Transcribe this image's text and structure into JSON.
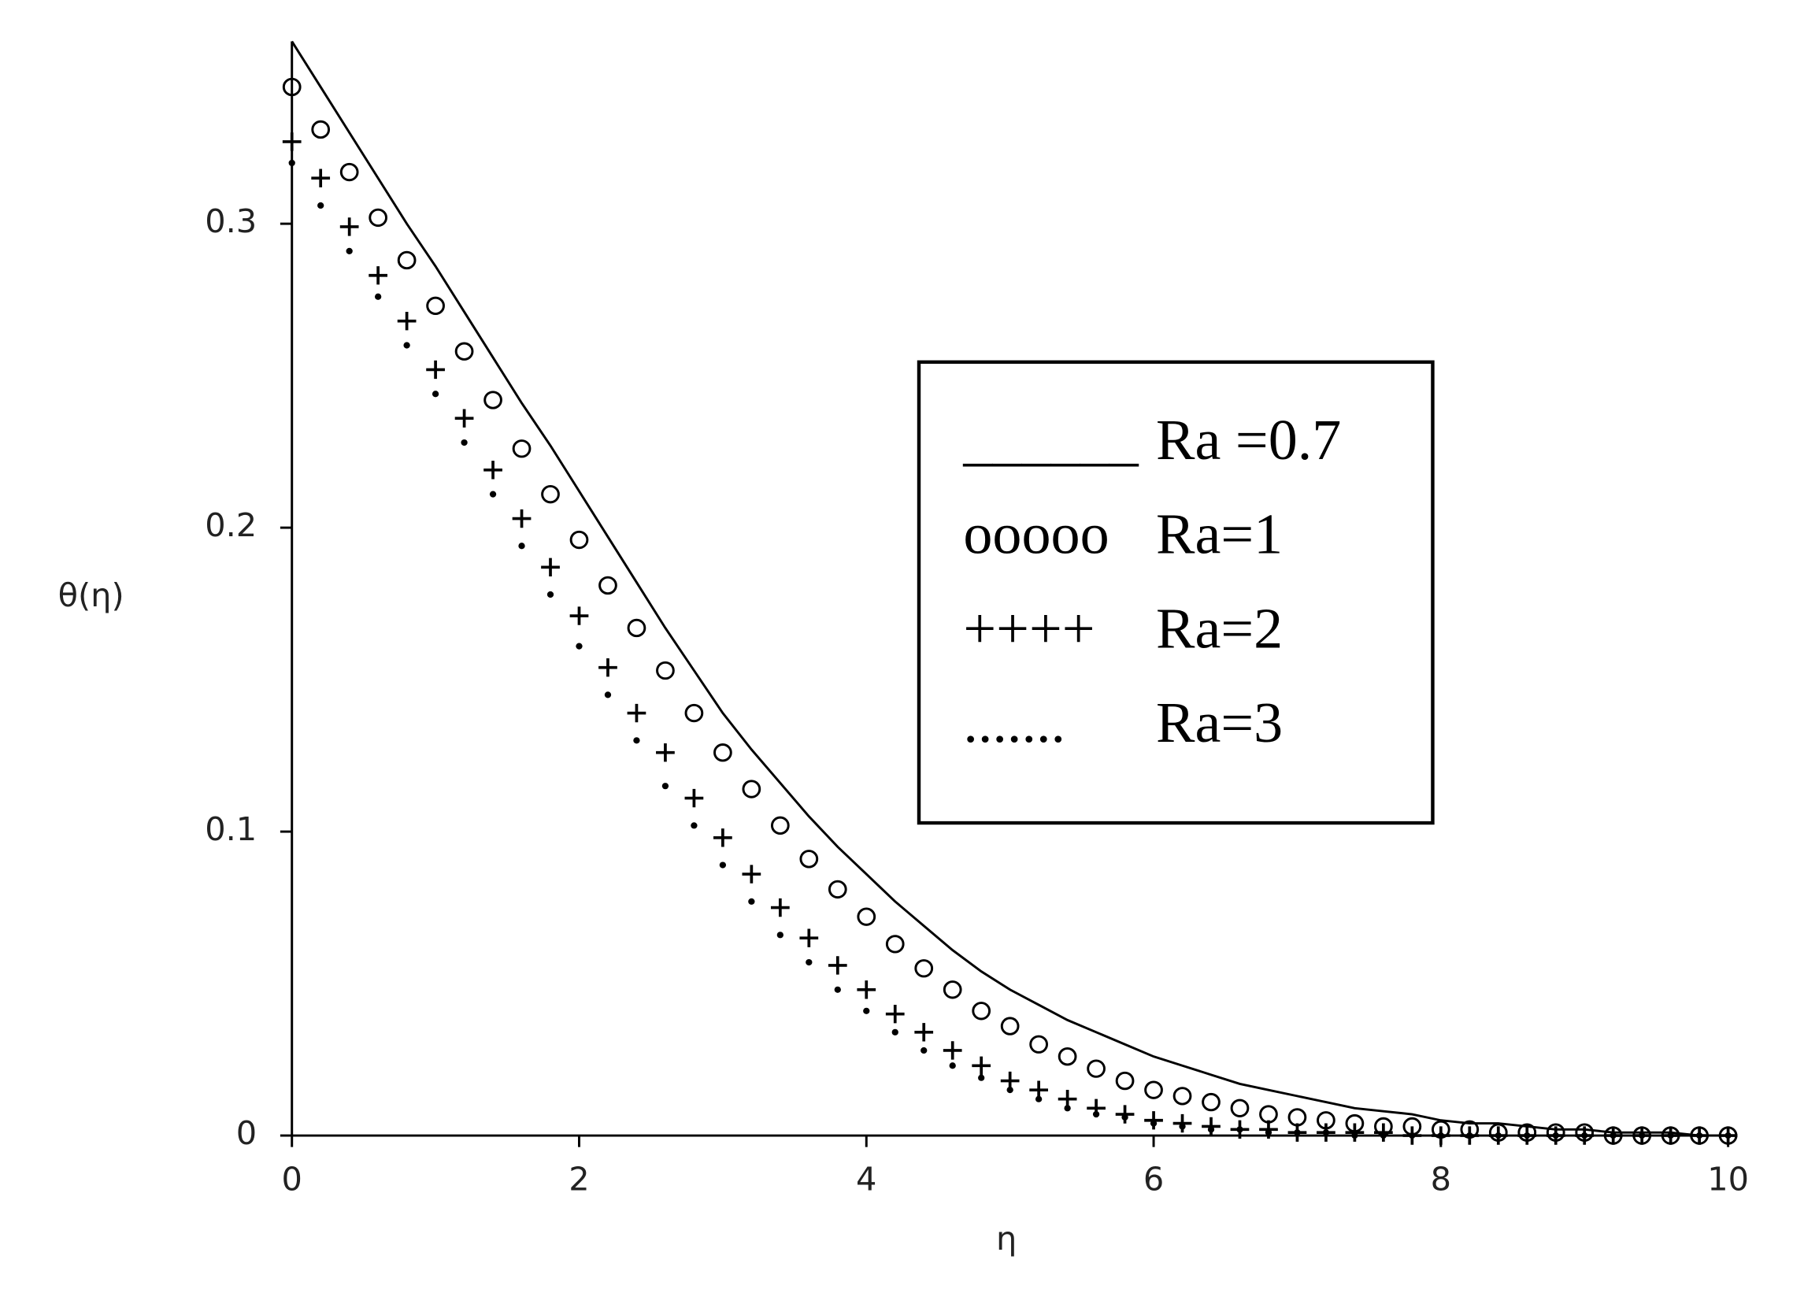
{
  "chart_data": {
    "type": "line",
    "xlabel": "η",
    "ylabel": "θ(η)",
    "xlim": [
      0,
      10
    ],
    "ylim": [
      0,
      0.36
    ],
    "xticks": [
      0,
      2,
      4,
      6,
      8,
      10
    ],
    "yticks": [
      0,
      0.1,
      0.2,
      0.3
    ],
    "grid": false,
    "legend": "right",
    "x": [
      0,
      0.2,
      0.4,
      0.6,
      0.8,
      1,
      1.2,
      1.4,
      1.6,
      1.8,
      2,
      2.2,
      2.4,
      2.6,
      2.8,
      3,
      3.2,
      3.4,
      3.6,
      3.8,
      4,
      4.2,
      4.4,
      4.6,
      4.8,
      5,
      5.2,
      5.4,
      5.6,
      5.8,
      6,
      6.2,
      6.4,
      6.6,
      6.8,
      7,
      7.2,
      7.4,
      7.6,
      7.8,
      8,
      8.2,
      8.4,
      8.6,
      8.8,
      9,
      9.2,
      9.4,
      9.6,
      9.8,
      10
    ],
    "series": [
      {
        "name": "Ra =0.7",
        "legend_symbol": "______",
        "marker": "line",
        "color": "#000000",
        "values": [
          0.36,
          0.345,
          0.33,
          0.315,
          0.3,
          0.286,
          0.271,
          0.256,
          0.241,
          0.227,
          0.212,
          0.197,
          0.182,
          0.167,
          0.153,
          0.139,
          0.127,
          0.116,
          0.105,
          0.095,
          0.086,
          0.077,
          0.069,
          0.061,
          0.054,
          0.048,
          0.043,
          0.038,
          0.034,
          0.03,
          0.026,
          0.023,
          0.02,
          0.017,
          0.015,
          0.013,
          0.011,
          0.009,
          0.008,
          0.007,
          0.005,
          0.004,
          0.004,
          0.003,
          0.002,
          0.002,
          0.001,
          0.001,
          0.001,
          0,
          0
        ]
      },
      {
        "name": "Ra=1",
        "legend_symbol": "ooooo",
        "marker": "circle",
        "color": "#000000",
        "values": [
          0.345,
          0.331,
          0.317,
          0.302,
          0.288,
          0.273,
          0.258,
          0.242,
          0.226,
          0.211,
          0.196,
          0.181,
          0.167,
          0.153,
          0.139,
          0.126,
          0.114,
          0.102,
          0.091,
          0.081,
          0.072,
          0.063,
          0.055,
          0.048,
          0.041,
          0.036,
          0.03,
          0.026,
          0.022,
          0.018,
          0.015,
          0.013,
          0.011,
          0.009,
          0.007,
          0.006,
          0.005,
          0.004,
          0.003,
          0.003,
          0.002,
          0.002,
          0.001,
          0.001,
          0.001,
          0.001,
          0,
          0,
          0,
          0,
          0
        ]
      },
      {
        "name": "Ra=2",
        "legend_symbol": "++++",
        "marker": "plus",
        "color": "#000000",
        "values": [
          0.327,
          0.315,
          0.299,
          0.283,
          0.268,
          0.252,
          0.236,
          0.219,
          0.203,
          0.187,
          0.171,
          0.154,
          0.139,
          0.126,
          0.111,
          0.098,
          0.086,
          0.075,
          0.065,
          0.056,
          0.048,
          0.04,
          0.034,
          0.028,
          0.023,
          0.018,
          0.015,
          0.012,
          0.009,
          0.007,
          0.005,
          0.004,
          0.003,
          0.002,
          0.002,
          0.001,
          0.001,
          0.001,
          0.001,
          0,
          0,
          0,
          0,
          0,
          0,
          0,
          0,
          0,
          0,
          0,
          0
        ]
      },
      {
        "name": "Ra=3",
        "legend_symbol": ".......",
        "marker": "dot",
        "color": "#000000",
        "values": [
          0.32,
          0.306,
          0.291,
          0.276,
          0.26,
          0.244,
          0.228,
          0.211,
          0.194,
          0.178,
          0.161,
          0.145,
          0.13,
          0.115,
          0.102,
          0.089,
          0.077,
          0.066,
          0.057,
          0.048,
          0.041,
          0.034,
          0.028,
          0.023,
          0.019,
          0.015,
          0.012,
          0.009,
          0.007,
          0.006,
          0.004,
          0.003,
          0.002,
          0.002,
          0.001,
          0.001,
          0.001,
          0,
          0,
          0,
          0,
          0,
          0,
          0,
          0,
          0,
          0,
          0,
          0,
          0,
          0
        ]
      }
    ]
  }
}
